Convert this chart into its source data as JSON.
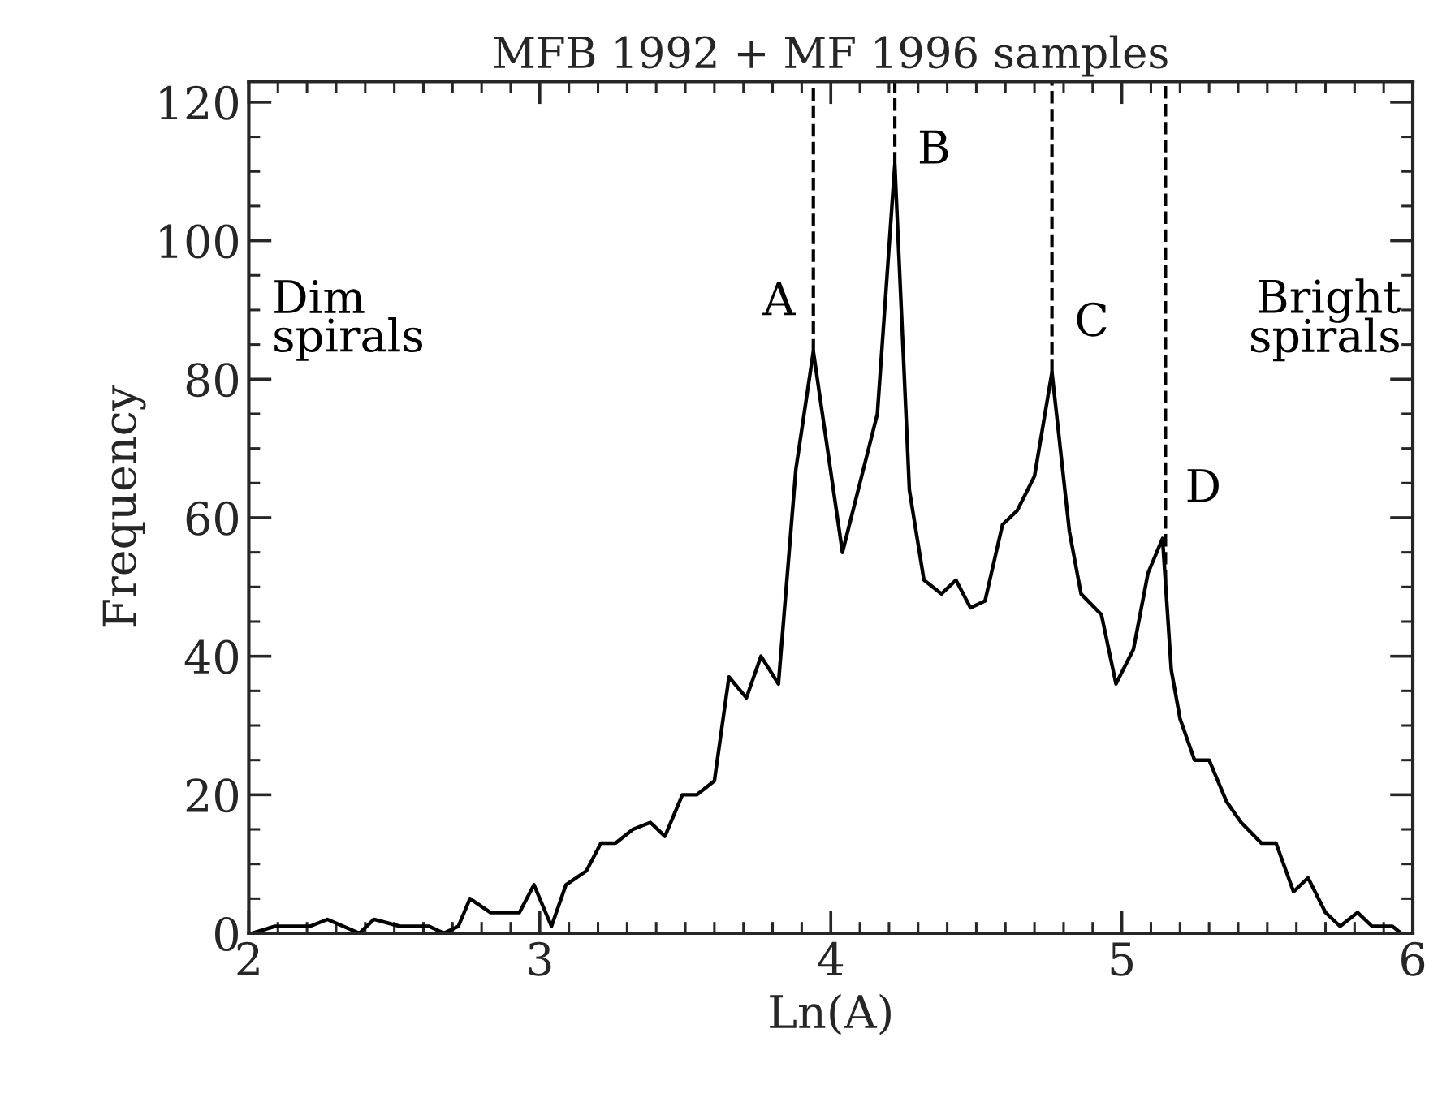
{
  "chart_data": {
    "type": "line",
    "title": "MFB 1992 + MF 1996 samples",
    "xlabel": "Ln(A)",
    "ylabel": "Frequency",
    "x": [
      2.01,
      2.09,
      2.21,
      2.27,
      2.38,
      2.43,
      2.52,
      2.62,
      2.67,
      2.72,
      2.76,
      2.83,
      2.93,
      2.98,
      3.04,
      3.09,
      3.16,
      3.21,
      3.26,
      3.32,
      3.38,
      3.43,
      3.49,
      3.54,
      3.6,
      3.65,
      3.71,
      3.76,
      3.82,
      3.88,
      3.94,
      4.04,
      4.16,
      4.22,
      4.27,
      4.32,
      4.38,
      4.43,
      4.48,
      4.53,
      4.59,
      4.64,
      4.7,
      4.76,
      4.82,
      4.86,
      4.93,
      4.98,
      5.04,
      5.09,
      5.14,
      5.17,
      5.2,
      5.25,
      5.3,
      5.36,
      5.41,
      5.48,
      5.53,
      5.59,
      5.64,
      5.7,
      5.75,
      5.81,
      5.86,
      5.93,
      5.96
    ],
    "series": [
      {
        "color": "#000000",
        "values": [
          0,
          1,
          1,
          2,
          0,
          2,
          1,
          1,
          0,
          1,
          5,
          3,
          3,
          7,
          1,
          7,
          9,
          13,
          13,
          15,
          16,
          14,
          20,
          20,
          22,
          37,
          34,
          40,
          36,
          67,
          84,
          55,
          75,
          111,
          64,
          51,
          49,
          51,
          47,
          48,
          59,
          61,
          66,
          81,
          58,
          49,
          46,
          36,
          41,
          52,
          57,
          38,
          31,
          25,
          25,
          19,
          16,
          13,
          13,
          6,
          8,
          3,
          1,
          3,
          1,
          1,
          0
        ]
      }
    ],
    "xlim": [
      2,
      6
    ],
    "xticks": [
      2,
      3,
      4,
      5,
      6
    ],
    "ylim": [
      0,
      123
    ],
    "yticks": [
      0,
      20,
      40,
      60,
      80,
      100,
      120
    ],
    "ref_lines": [
      {
        "axis": "x",
        "value": 3.94,
        "line_style": "dashed"
      },
      {
        "axis": "x",
        "value": 4.22,
        "line_style": "dashed"
      },
      {
        "axis": "x",
        "value": 4.76,
        "line_style": "dashed"
      },
      {
        "axis": "x",
        "value": 5.15,
        "line_style": "dashed"
      }
    ],
    "annotations": [
      {
        "text": "A",
        "x": 3.94,
        "y": 84
      },
      {
        "text": "B",
        "x": 4.22,
        "y": 111
      },
      {
        "text": "C",
        "x": 4.76,
        "y": 81
      },
      {
        "text": "D",
        "x": 5.14,
        "y": 57
      },
      "Dim\nspirals",
      "Bright\nspirals"
    ],
    "grid": false,
    "marker": "none",
    "line_style": "solid"
  }
}
